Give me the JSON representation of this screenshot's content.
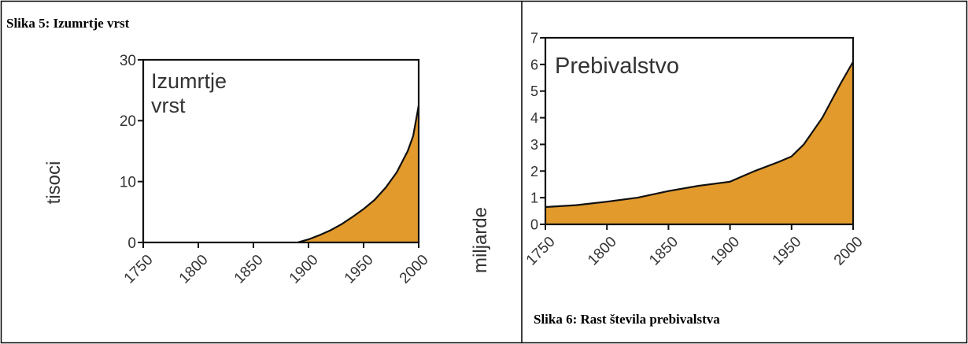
{
  "colors": {
    "fill": "#e29a2d",
    "line": "#111111",
    "axis": "#111111",
    "text": "#333333",
    "border": "#000000"
  },
  "captions": {
    "left": "Slika 5: Izumrtje vrst",
    "right": "Slika 6: Rast števila prebivalstva"
  },
  "chart_data": [
    {
      "type": "area",
      "title": "Izumrtje vrst",
      "ylabel": "tisoci",
      "xlabel": "",
      "x_ticks": [
        "1750",
        "1800",
        "1850",
        "1900",
        "1950",
        "2000"
      ],
      "y_ticks": [
        "0",
        "10",
        "20",
        "30"
      ],
      "xlim": [
        1750,
        2000
      ],
      "ylim": [
        0,
        30
      ],
      "grid": false,
      "x": [
        1890,
        1900,
        1910,
        1920,
        1930,
        1940,
        1950,
        1960,
        1970,
        1980,
        1990,
        1995,
        2000
      ],
      "y": [
        0,
        0.5,
        1.2,
        2.0,
        3.0,
        4.2,
        5.5,
        7.0,
        9.0,
        11.5,
        15.0,
        17.5,
        22.5
      ]
    },
    {
      "type": "area",
      "title": "Prebivalstvo",
      "ylabel": "miljarde",
      "xlabel": "",
      "x_ticks": [
        "1750",
        "1800",
        "1850",
        "1900",
        "1950",
        "2000"
      ],
      "y_ticks": [
        "0",
        "1",
        "2",
        "3",
        "4",
        "5",
        "6",
        "7"
      ],
      "xlim": [
        1750,
        2000
      ],
      "ylim": [
        0,
        7
      ],
      "grid": false,
      "x": [
        1750,
        1775,
        1800,
        1825,
        1850,
        1875,
        1900,
        1920,
        1940,
        1950,
        1960,
        1975,
        1990,
        2000
      ],
      "y": [
        0.65,
        0.72,
        0.85,
        1.0,
        1.25,
        1.45,
        1.6,
        2.0,
        2.35,
        2.55,
        3.0,
        4.0,
        5.3,
        6.1
      ]
    }
  ]
}
